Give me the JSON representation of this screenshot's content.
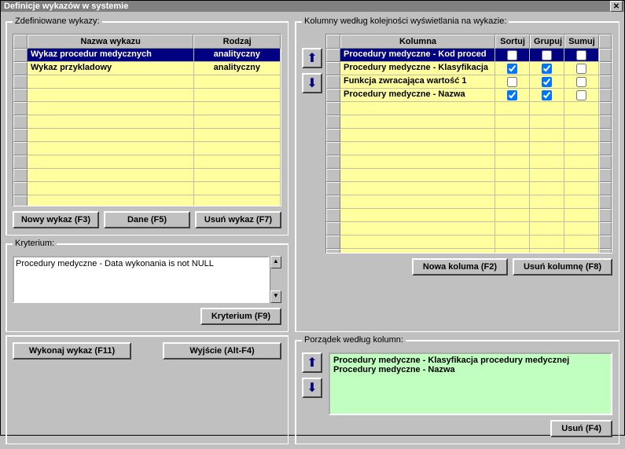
{
  "window": {
    "title": "Definicje wykazów w systemie"
  },
  "defined": {
    "legend": "Zdefiniowane wykazy:",
    "headers": {
      "name": "Nazwa wykazu",
      "type": "Rodzaj"
    },
    "rows": [
      {
        "name": "Wykaz procedur medycznych",
        "type": "analityczny",
        "selected": true
      },
      {
        "name": "Wykaz przykladowy",
        "type": "analityczny",
        "selected": false
      }
    ],
    "buttons": {
      "new": "Nowy wykaz (F3)",
      "data": "Dane (F5)",
      "delete": "Usuń wykaz (F7)"
    }
  },
  "criterion": {
    "legend": "Kryterium:",
    "text": "Procedury medyczne - Data wykonania is not NULL",
    "button": "Kryterium (F9)"
  },
  "exec": {
    "run": "Wykonaj wykaz (F11)",
    "exit": "Wyjście (Alt-F4)"
  },
  "columns": {
    "legend": "Kolumny według kolejności wyświetlania na wykazie:",
    "headers": {
      "col": "Kolumna",
      "sort": "Sortuj",
      "group": "Grupuj",
      "sum": "Sumuj"
    },
    "rows": [
      {
        "col": "Procedury medyczne - Kod proced",
        "sort": false,
        "group": false,
        "sum": false,
        "selected": true
      },
      {
        "col": "Procedury medyczne - Klasyfikacja",
        "sort": true,
        "group": true,
        "sum": false,
        "selected": false
      },
      {
        "col": "Funkcja zwracająca wartość 1",
        "sort": false,
        "group": true,
        "sum": false,
        "selected": false
      },
      {
        "col": "Procedury medyczne - Nazwa",
        "sort": true,
        "group": true,
        "sum": false,
        "selected": false
      }
    ],
    "buttons": {
      "new": "Nowa koluma (F2)",
      "delete": "Usuń kolumnę (F8)"
    }
  },
  "order": {
    "legend": "Porządek według kolumn:",
    "items": [
      "Procedury medyczne - Klasyfikacja procedury medycznej",
      "Procedury medyczne - Nazwa"
    ],
    "button": "Usuń (F4)"
  },
  "colors": {
    "cell_bg": "#ffffa0",
    "sel_bg": "#000080",
    "order_bg": "#c0ffc0"
  }
}
